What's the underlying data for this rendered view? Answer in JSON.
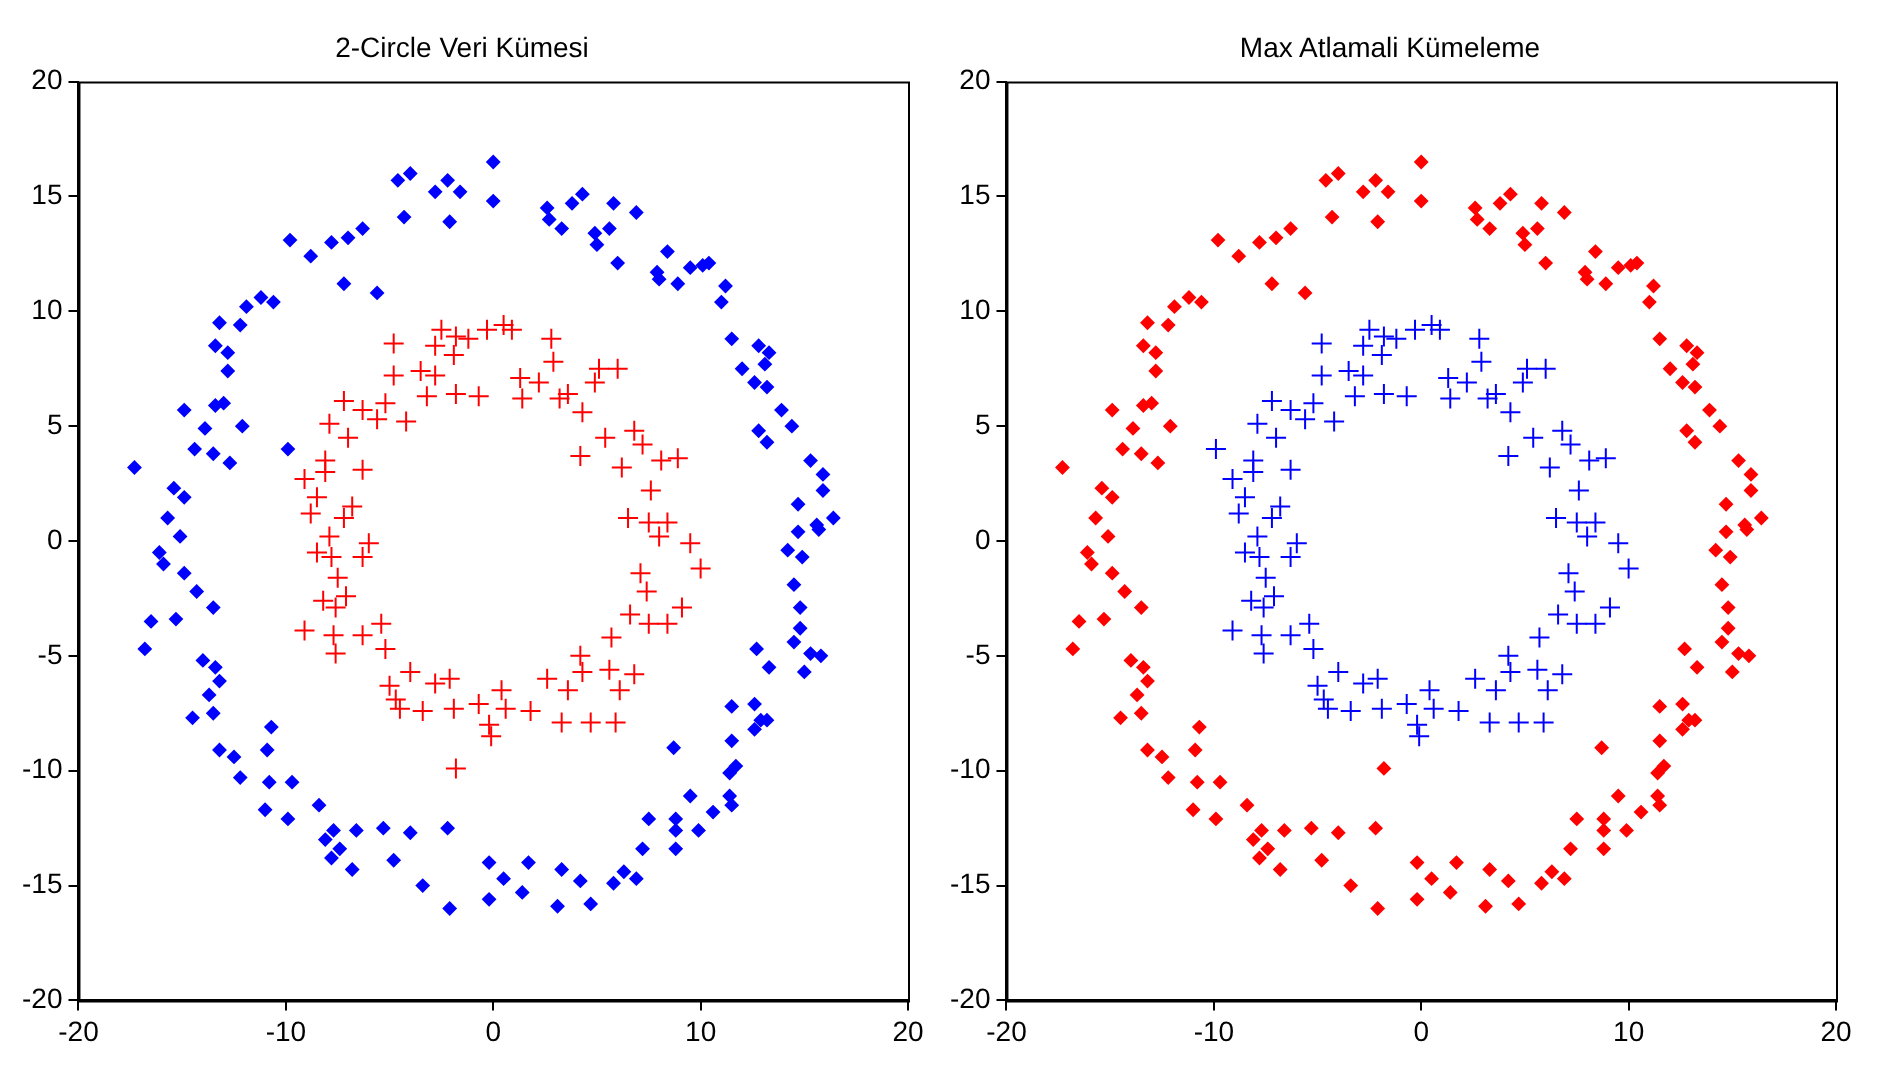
{
  "chart_data": [
    {
      "type": "scatter",
      "title": "2-Circle Veri Kümesi",
      "xlim": [
        -20,
        20
      ],
      "ylim": [
        -20,
        20
      ],
      "xticks": [
        -20,
        -10,
        0,
        10,
        20
      ],
      "yticks": [
        -20,
        -15,
        -10,
        -5,
        0,
        5,
        10,
        15,
        20
      ],
      "grid": false,
      "legend": false,
      "series": [
        {
          "color": "#0000ff",
          "marker": "diamond",
          "x": [
            0,
            0,
            -1.6,
            -2.2,
            -2.8,
            -2.1,
            -4.0,
            -4.6,
            -4.3,
            -6.3,
            -7.0,
            -7.8,
            -8.8,
            -9.8,
            -7.2,
            -5.6,
            -10.6,
            -11.2,
            -11.9,
            -12.2,
            -13.2,
            -13.4,
            -12.8,
            -12.8,
            -13.0,
            -13.4,
            -14.9,
            -12.1,
            -13.9,
            -14.4,
            -13.5,
            -12.7,
            -9.9,
            -17.3,
            -15.4,
            -14.9,
            -15.7,
            -15.1,
            -16.1,
            -15.9,
            -14.9,
            -14.3,
            -13.5,
            -16.5,
            -15.3,
            -16.8,
            -14.0,
            -13.4,
            -13.2,
            -13.7,
            -13.5,
            -14.5,
            -10.7,
            -13.2,
            -12.5,
            -10.9,
            -12.2,
            -10.8,
            -9.7,
            -11.0,
            -9.9,
            -8.4,
            -7.7,
            -8.1,
            -7.4,
            -7.8,
            -6.8,
            -6.6,
            -5.3,
            -4.0,
            -4.8,
            -2.2,
            -3.4,
            -2.1,
            -0.2,
            -0.2,
            0.5,
            1.7,
            1.4,
            3.3,
            3.1,
            4.2,
            4.7,
            5.8,
            6.3,
            6.9,
            7.2,
            7.5,
            8.8,
            8.8,
            8.8,
            9.9,
            9.5,
            10.6,
            11.4,
            11.5,
            11.4,
            11.7,
            8.7,
            11.5,
            12.6,
            12.9,
            13.2,
            11.5,
            12.6,
            13.3,
            12.7,
            15.0,
            14.5,
            15.3,
            15.8,
            14.8,
            14.8,
            14.5,
            14.2,
            14.9,
            14.7,
            15.7,
            15.6,
            16.4,
            14.7,
            15.9,
            15.9,
            15.3,
            13.2,
            12.8,
            14.4,
            13.9,
            13.2,
            12.6,
            12.0,
            13.1,
            13.3,
            12.8,
            11.5,
            11.0,
            11.2,
            10.4,
            10.1,
            9.5,
            8.9,
            8.0,
            7.9,
            8.4,
            6.0,
            5.0,
            5.6,
            4.9,
            6.9,
            5.8,
            4.3,
            3.8,
            2.6,
            2.7,
            3.3
          ],
          "values": [
            16.5,
            14.8,
            15.2,
            15.7,
            15.2,
            13.9,
            16.0,
            15.7,
            14.1,
            13.6,
            13.2,
            13.0,
            12.4,
            13.1,
            11.2,
            10.8,
            10.4,
            10.6,
            10.2,
            9.4,
            9.5,
            8.5,
            8.2,
            7.4,
            6.0,
            5.9,
            5.7,
            5.0,
            4.9,
            4.0,
            3.8,
            3.4,
            4.0,
            3.2,
            2.3,
            1.9,
            1.0,
            0.2,
            -0.5,
            -1.0,
            -1.4,
            -2.2,
            -2.9,
            -3.5,
            -3.4,
            -4.7,
            -5.2,
            -5.5,
            -6.1,
            -6.7,
            -7.5,
            -7.7,
            -8.1,
            -9.1,
            -9.4,
            -9.1,
            -10.3,
            -10.5,
            -10.5,
            -11.7,
            -12.1,
            -11.5,
            -12.6,
            -13.0,
            -13.4,
            -13.8,
            -14.3,
            -12.6,
            -12.5,
            -12.7,
            -13.9,
            -12.5,
            -15.0,
            -16.0,
            -15.6,
            -14.0,
            -14.7,
            -14.0,
            -15.3,
            -14.3,
            -15.9,
            -14.8,
            -15.8,
            -14.9,
            -14.4,
            -14.7,
            -13.4,
            -12.1,
            -12.1,
            -13.4,
            -12.6,
            -12.6,
            -11.1,
            -11.8,
            -11.1,
            -11.5,
            -10.1,
            -9.8,
            -9.0,
            -8.7,
            -8.2,
            -7.8,
            -7.8,
            -7.2,
            -7.1,
            -5.5,
            -4.7,
            -5.7,
            -4.4,
            -4.9,
            -5.0,
            -3.8,
            -2.9,
            -1.9,
            -0.4,
            -0.7,
            0.4,
            0.5,
            0.7,
            1.0,
            1.6,
            2.2,
            2.9,
            3.5,
            4.3,
            4.8,
            5.0,
            5.7,
            6.7,
            6.9,
            7.5,
            7.7,
            8.2,
            8.5,
            8.8,
            10.4,
            11.1,
            12.1,
            12.0,
            11.9,
            11.2,
            11.4,
            11.7,
            12.6,
            12.1,
            12.9,
            13.6,
            13.4,
            14.3,
            14.7,
            15.1,
            14.7,
            14.5,
            14.0,
            13.6
          ]
        },
        {
          "color": "#ff0000",
          "marker": "cross",
          "x": [
            -4.8,
            -2.5,
            -1.8,
            -1.2,
            -0.3,
            0.5,
            0.9,
            -2.8,
            -1.9,
            -4.8,
            -3.5,
            -2.8,
            -1.8,
            -0.7,
            -3.2,
            -7.2,
            -6.3,
            -5.6,
            -5.2,
            -4.2,
            -7.9,
            -7.0,
            2.8,
            2.9,
            1.3,
            2.2,
            1.4,
            3.6,
            3.2,
            5.1,
            6.0,
            4.9,
            4.3,
            5.4,
            6.8,
            4.2,
            6.2,
            7.2,
            8.9,
            8.1,
            7.6,
            6.5,
            7.5,
            8.4,
            8.0,
            9.5,
            10.0,
            7.1,
            7.4,
            9.1,
            6.6,
            7.5,
            8.4,
            5.7,
            4.2,
            5.6,
            6.8,
            6.1,
            2.6,
            3.6,
            4.3,
            3.3,
            4.7,
            5.9,
            1.8,
            0.6,
            -0.7,
            -0.1,
            -0.2,
            0.4,
            -1.9,
            -2.1,
            -2.8,
            -3.4,
            -4.5,
            -4.7,
            -4.0,
            -5.2,
            -5.4,
            -5.0,
            -6.3,
            -7.6,
            -7.7,
            -9.1,
            -8.2,
            -7.1,
            -7.6,
            -7.5,
            -6.3,
            -7.8,
            -8.5,
            -6.0,
            -7.9,
            -7.2,
            -6.8,
            -8.8,
            -8.5,
            -9.1,
            -8.1,
            -6.3,
            -8.1,
            -1.8
          ],
          "values": [
            8.6,
            9.2,
            8.9,
            8.8,
            9.2,
            9.4,
            9.2,
            8.5,
            8.1,
            7.2,
            7.4,
            7.2,
            6.4,
            6.3,
            6.3,
            6.1,
            5.7,
            5.3,
            6.0,
            5.2,
            5.1,
            4.5,
            8.8,
            7.8,
            7.1,
            6.9,
            6.2,
            6.4,
            6.2,
            7.5,
            7.5,
            6.9,
            5.6,
            4.5,
            4.8,
            3.7,
            3.2,
            4.2,
            3.6,
            3.5,
            2.2,
            1.0,
            0.8,
            0.8,
            0.2,
            -0.1,
            -1.2,
            -1.4,
            -2.2,
            -2.9,
            -3.2,
            -3.6,
            -3.6,
            -4.2,
            -5.0,
            -5.6,
            -5.8,
            -6.5,
            -6.0,
            -6.5,
            -5.7,
            -7.9,
            -7.9,
            -7.9,
            -7.4,
            -7.3,
            -7.1,
            -8.5,
            -8.0,
            -6.5,
            -7.3,
            -6.0,
            -6.2,
            -7.4,
            -7.3,
            -6.9,
            -5.7,
            -4.7,
            -3.6,
            -6.3,
            -4.1,
            -4.9,
            -4.1,
            -3.9,
            -2.6,
            -2.4,
            -2.9,
            -1.6,
            -0.7,
            -0.7,
            -0.5,
            -0.1,
            0.2,
            1.0,
            1.5,
            1.2,
            1.9,
            2.7,
            3.0,
            3.1,
            3.5,
            -9.9
          ]
        }
      ]
    },
    {
      "type": "scatter",
      "title": "Max Atlamali Kümeleme",
      "xlim": [
        -20,
        20
      ],
      "ylim": [
        -20,
        20
      ],
      "xticks": [
        -20,
        -10,
        0,
        10,
        20
      ],
      "yticks": [
        -20,
        -15,
        -10,
        -5,
        0,
        5,
        10,
        15,
        20
      ],
      "grid": false,
      "legend": false,
      "series": [
        {
          "color": "#ff0000",
          "marker": "diamond",
          "x": [
            0,
            0,
            -1.6,
            -2.2,
            -2.8,
            -2.1,
            -4.0,
            -4.6,
            -4.3,
            -6.3,
            -7.0,
            -7.8,
            -8.8,
            -9.8,
            -7.2,
            -5.6,
            -10.6,
            -11.2,
            -11.9,
            -12.2,
            -13.2,
            -13.4,
            -12.8,
            -12.8,
            -13.0,
            -13.4,
            -14.9,
            -12.1,
            -13.9,
            -14.4,
            -13.5,
            -12.7,
            -1.8,
            -17.3,
            -15.4,
            -14.9,
            -15.7,
            -15.1,
            -16.1,
            -15.9,
            -14.9,
            -14.3,
            -13.5,
            -16.5,
            -15.3,
            -16.8,
            -14.0,
            -13.4,
            -13.2,
            -13.7,
            -13.5,
            -14.5,
            -10.7,
            -13.2,
            -12.5,
            -10.9,
            -12.2,
            -10.8,
            -9.7,
            -11.0,
            -9.9,
            -8.4,
            -7.7,
            -8.1,
            -7.4,
            -7.8,
            -6.8,
            -6.6,
            -5.3,
            -4.0,
            -4.8,
            -2.2,
            -3.4,
            -2.1,
            -0.2,
            -0.2,
            0.5,
            1.7,
            1.4,
            3.3,
            3.1,
            4.2,
            4.7,
            5.8,
            6.3,
            6.9,
            7.2,
            7.5,
            8.8,
            8.8,
            8.8,
            9.9,
            9.5,
            10.6,
            11.4,
            11.5,
            11.4,
            11.7,
            8.7,
            11.5,
            12.6,
            12.9,
            13.2,
            11.5,
            12.6,
            13.3,
            12.7,
            15.0,
            14.5,
            15.3,
            15.8,
            14.8,
            14.8,
            14.5,
            14.2,
            14.9,
            14.7,
            15.7,
            15.6,
            16.4,
            14.7,
            15.9,
            15.9,
            15.3,
            13.2,
            12.8,
            14.4,
            13.9,
            13.2,
            12.6,
            12.0,
            13.1,
            13.3,
            12.8,
            11.5,
            11.0,
            11.2,
            10.4,
            10.1,
            9.5,
            8.9,
            8.0,
            7.9,
            8.4,
            6.0,
            5.0,
            5.6,
            4.9,
            6.9,
            5.8,
            4.3,
            3.8,
            2.6,
            2.7,
            3.3
          ],
          "values": [
            16.5,
            14.8,
            15.2,
            15.7,
            15.2,
            13.9,
            16.0,
            15.7,
            14.1,
            13.6,
            13.2,
            13.0,
            12.4,
            13.1,
            11.2,
            10.8,
            10.4,
            10.6,
            10.2,
            9.4,
            9.5,
            8.5,
            8.2,
            7.4,
            6.0,
            5.9,
            5.7,
            5.0,
            4.9,
            4.0,
            3.8,
            3.4,
            -9.9,
            3.2,
            2.3,
            1.9,
            1.0,
            0.2,
            -0.5,
            -1.0,
            -1.4,
            -2.2,
            -2.9,
            -3.5,
            -3.4,
            -4.7,
            -5.2,
            -5.5,
            -6.1,
            -6.7,
            -7.5,
            -7.7,
            -8.1,
            -9.1,
            -9.4,
            -9.1,
            -10.3,
            -10.5,
            -10.5,
            -11.7,
            -12.1,
            -11.5,
            -12.6,
            -13.0,
            -13.4,
            -13.8,
            -14.3,
            -12.6,
            -12.5,
            -12.7,
            -13.9,
            -12.5,
            -15.0,
            -16.0,
            -15.6,
            -14.0,
            -14.7,
            -14.0,
            -15.3,
            -14.3,
            -15.9,
            -14.8,
            -15.8,
            -14.9,
            -14.4,
            -14.7,
            -13.4,
            -12.1,
            -12.1,
            -13.4,
            -12.6,
            -12.6,
            -11.1,
            -11.8,
            -11.1,
            -11.5,
            -10.1,
            -9.8,
            -9.0,
            -8.7,
            -8.2,
            -7.8,
            -7.8,
            -7.2,
            -7.1,
            -5.5,
            -4.7,
            -5.7,
            -4.4,
            -4.9,
            -5.0,
            -3.8,
            -2.9,
            -1.9,
            -0.4,
            -0.7,
            0.4,
            0.5,
            0.7,
            1.0,
            1.6,
            2.2,
            2.9,
            3.5,
            4.3,
            4.8,
            5.0,
            5.7,
            6.7,
            6.9,
            7.5,
            7.7,
            8.2,
            8.5,
            8.8,
            10.4,
            11.1,
            12.1,
            12.0,
            11.9,
            11.2,
            11.4,
            11.7,
            12.6,
            12.1,
            12.9,
            13.6,
            13.4,
            14.3,
            14.7,
            15.1,
            14.7,
            14.5,
            14.0,
            13.6
          ]
        },
        {
          "color": "#0000ff",
          "marker": "cross",
          "x": [
            -4.8,
            -2.5,
            -1.8,
            -1.2,
            -0.3,
            0.5,
            0.9,
            -2.8,
            -1.9,
            -4.8,
            -3.5,
            -2.8,
            -1.8,
            -0.7,
            -3.2,
            -7.2,
            -6.3,
            -5.6,
            -5.2,
            -4.2,
            -7.9,
            -7.0,
            2.8,
            2.9,
            1.3,
            2.2,
            1.4,
            3.6,
            3.2,
            5.1,
            6.0,
            4.9,
            4.3,
            5.4,
            6.8,
            4.2,
            6.2,
            7.2,
            8.9,
            8.1,
            7.6,
            6.5,
            7.5,
            8.4,
            8.0,
            9.5,
            10.0,
            7.1,
            7.4,
            9.1,
            6.6,
            7.5,
            8.4,
            5.7,
            4.2,
            5.6,
            6.8,
            6.1,
            2.6,
            3.6,
            4.3,
            3.3,
            4.7,
            5.9,
            1.8,
            0.6,
            -0.7,
            -0.1,
            -0.2,
            0.4,
            -1.9,
            -2.1,
            -2.8,
            -3.4,
            -4.5,
            -4.7,
            -4.0,
            -5.2,
            -5.4,
            -5.0,
            -6.3,
            -7.6,
            -7.7,
            -9.1,
            -8.2,
            -7.1,
            -7.6,
            -7.5,
            -6.3,
            -7.8,
            -8.5,
            -6.0,
            -7.9,
            -7.2,
            -6.8,
            -8.8,
            -8.5,
            -9.1,
            -8.1,
            -6.3,
            -8.1,
            -9.9
          ],
          "values": [
            8.6,
            9.2,
            8.9,
            8.8,
            9.2,
            9.4,
            9.2,
            8.5,
            8.1,
            7.2,
            7.4,
            7.2,
            6.4,
            6.3,
            6.3,
            6.1,
            5.7,
            5.3,
            6.0,
            5.2,
            5.1,
            4.5,
            8.8,
            7.8,
            7.1,
            6.9,
            6.2,
            6.4,
            6.2,
            7.5,
            7.5,
            6.9,
            5.6,
            4.5,
            4.8,
            3.7,
            3.2,
            4.2,
            3.6,
            3.5,
            2.2,
            1.0,
            0.8,
            0.8,
            0.2,
            -0.1,
            -1.2,
            -1.4,
            -2.2,
            -2.9,
            -3.2,
            -3.6,
            -3.6,
            -4.2,
            -5.0,
            -5.6,
            -5.8,
            -6.5,
            -6.0,
            -6.5,
            -5.7,
            -7.9,
            -7.9,
            -7.9,
            -7.4,
            -7.3,
            -7.1,
            -8.5,
            -8.0,
            -6.5,
            -7.3,
            -6.0,
            -6.2,
            -7.4,
            -7.3,
            -6.9,
            -5.7,
            -4.7,
            -3.6,
            -6.3,
            -4.1,
            -4.9,
            -4.1,
            -3.9,
            -2.6,
            -2.4,
            -2.9,
            -1.6,
            -0.7,
            -0.7,
            -0.5,
            -0.1,
            0.2,
            1.0,
            1.5,
            1.2,
            1.9,
            2.7,
            3.0,
            3.1,
            3.5,
            4.0
          ]
        }
      ]
    }
  ]
}
